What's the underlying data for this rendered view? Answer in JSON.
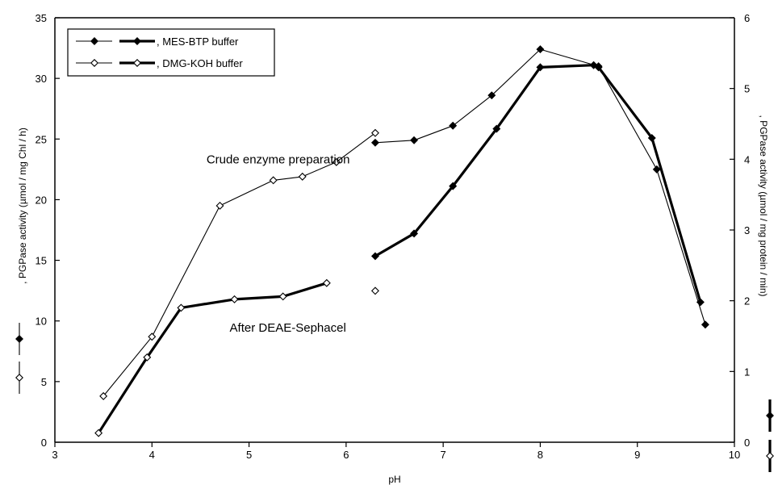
{
  "chart_data": {
    "type": "line",
    "title": "",
    "xlabel": "pH",
    "ylabel_left": ", PGPase activity (µmol / mg Chl / h)",
    "ylabel_right": ", PGPase activity (µmol / mg protein / min)",
    "xlim": [
      3,
      10
    ],
    "ylim_left": [
      0,
      35
    ],
    "ylim_right": [
      0,
      6
    ],
    "x_ticks": [
      3,
      4,
      5,
      6,
      7,
      8,
      9,
      10
    ],
    "y_left_ticks": [
      0,
      5,
      10,
      15,
      20,
      25,
      30,
      35
    ],
    "y_right_ticks": [
      0,
      1,
      2,
      3,
      4,
      5,
      6
    ],
    "grid": false,
    "legend_position": "top-left",
    "legend": [
      {
        "label": ", MES-BTP buffer",
        "marker": "filled-diamond"
      },
      {
        "label": ", DMG-KOH buffer",
        "marker": "open-diamond"
      }
    ],
    "annotations": [
      {
        "text": "Crude enzyme preparation",
        "x": 5.3,
        "y": 23.0
      },
      {
        "text": "After DEAE-Sephacel",
        "x": 5.4,
        "y": 9.1
      }
    ],
    "series": [
      {
        "name": "Crude enzyme preparation, MES-BTP buffer",
        "axis": "left",
        "marker": "filled",
        "line": "thin",
        "points": [
          [
            6.3,
            24.7
          ],
          [
            6.7,
            24.9
          ],
          [
            7.1,
            26.1
          ],
          [
            7.5,
            28.6
          ],
          [
            8.0,
            32.4
          ],
          [
            8.6,
            31.0
          ],
          [
            9.2,
            22.5
          ],
          [
            9.7,
            9.7
          ]
        ]
      },
      {
        "name": "Crude enzyme preparation, DMG-KOH buffer",
        "axis": "left",
        "marker": "open",
        "line": "thin",
        "points": [
          [
            3.5,
            3.8
          ],
          [
            4.0,
            8.7
          ],
          [
            4.7,
            19.5
          ],
          [
            5.25,
            21.6
          ],
          [
            5.55,
            21.9
          ],
          [
            5.9,
            23.1
          ],
          [
            6.3,
            25.5
          ]
        ]
      },
      {
        "name": "After DEAE-Sephacel, MES-BTP buffer",
        "axis": "right",
        "marker": "filled",
        "line": "thick",
        "points": [
          [
            6.3,
            2.63
          ],
          [
            6.7,
            2.95
          ],
          [
            7.1,
            3.62
          ],
          [
            7.55,
            4.43
          ],
          [
            8.0,
            5.3
          ],
          [
            8.55,
            5.33
          ],
          [
            8.6,
            5.3
          ],
          [
            9.15,
            4.3
          ],
          [
            9.65,
            1.98
          ]
        ]
      },
      {
        "name": "After DEAE-Sephacel, DMG-KOH buffer",
        "axis": "right",
        "marker": "open",
        "line": "thick",
        "points": [
          [
            3.45,
            0.13
          ],
          [
            3.95,
            1.2
          ],
          [
            4.3,
            1.9
          ],
          [
            4.85,
            2.02
          ],
          [
            5.35,
            2.06
          ],
          [
            5.8,
            2.25
          ]
        ]
      },
      {
        "name": "After DEAE-Sephacel, DMG-KOH buffer (pH 6.3)",
        "axis": "right",
        "marker": "open",
        "line": "none",
        "points": [
          [
            6.3,
            2.14
          ]
        ]
      }
    ]
  }
}
